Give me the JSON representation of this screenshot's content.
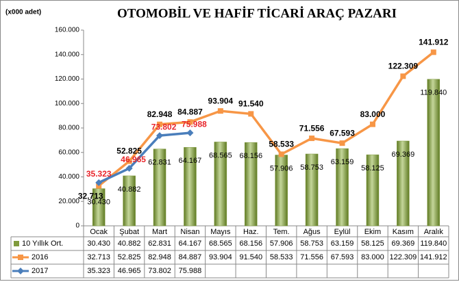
{
  "chart_data": {
    "type": "bar-line",
    "title": "OTOMOBİL VE HAFİF TİCARİ ARAÇ PAZARI",
    "y_label": "(x000 adet)",
    "categories": [
      "Ocak",
      "Şubat",
      "Mart",
      "Nisan",
      "Mayıs",
      "Haz.",
      "Tem.",
      "Ağus",
      "Eylül",
      "Ekim",
      "Kasım",
      "Aralık"
    ],
    "series": [
      {
        "name": "10 Yıllık Ort.",
        "kind": "bar",
        "color": "#7f9a3c",
        "values": [
          30430,
          40882,
          62831,
          64167,
          68565,
          68156,
          57906,
          58753,
          63159,
          58125,
          69369,
          119840
        ],
        "value_labels": [
          "30.430",
          "40.882",
          "62.831",
          "64.167",
          "68.565",
          "68.156",
          "57.906",
          "58.753",
          "63.159",
          "58.125",
          "69.369",
          "119.840"
        ]
      },
      {
        "name": "2016",
        "kind": "line",
        "color": "#f79646",
        "values": [
          32713,
          52825,
          82948,
          84887,
          93904,
          91540,
          58533,
          71556,
          67593,
          83000,
          122309,
          141912
        ],
        "value_labels": [
          "32.713",
          "52.825",
          "82.948",
          "84.887",
          "93.904",
          "91.540",
          "58.533",
          "71.556",
          "67.593",
          "83.000",
          "122.309",
          "141.912"
        ]
      },
      {
        "name": "2017",
        "kind": "line",
        "color": "#4a7ebb",
        "values": [
          35323,
          46965,
          73802,
          75988,
          null,
          null,
          null,
          null,
          null,
          null,
          null,
          null
        ],
        "value_labels": [
          "35.323",
          "46.965",
          "73.802",
          "75.988",
          null,
          null,
          null,
          null,
          null,
          null,
          null,
          null
        ]
      }
    ],
    "ylim": [
      0,
      160000
    ],
    "yticks": [
      0,
      {
        "value": 20000,
        "label": "20.000"
      },
      {
        "value": 40000,
        "label": "40.000"
      },
      {
        "value": 60000,
        "label": "60.000"
      },
      {
        "value": 80000,
        "label": "80.000"
      },
      {
        "value": 100000,
        "label": "100.000"
      },
      {
        "value": 120000,
        "label": "120.000"
      },
      {
        "value": 140000,
        "label": "140.000"
      },
      {
        "value": 160000,
        "label": "160.000"
      }
    ]
  }
}
